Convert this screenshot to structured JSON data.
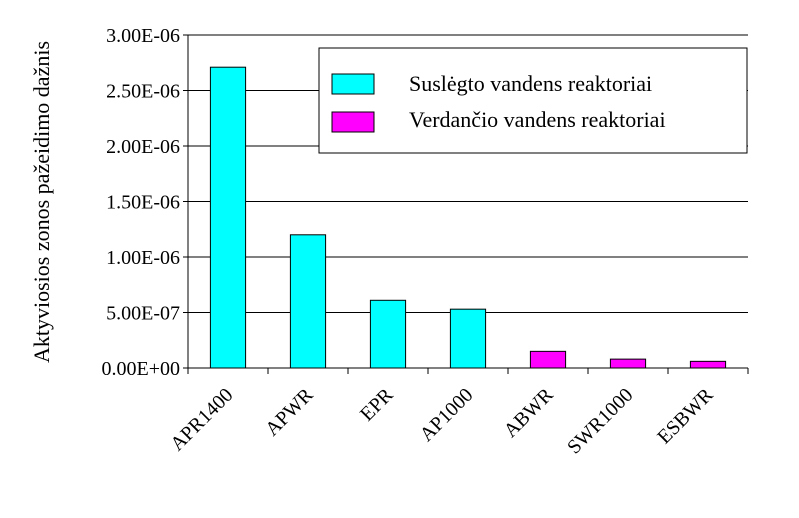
{
  "chart_data": {
    "type": "bar",
    "title": "",
    "xlabel": "",
    "ylabel": "Aktyviosios zonos pažeidimo dažnis",
    "ylim": [
      0,
      3e-06
    ],
    "y_ticks": [
      {
        "value": 0,
        "label": "0.00E+00"
      },
      {
        "value": 5e-07,
        "label": "5.00E-07"
      },
      {
        "value": 1e-06,
        "label": "1.00E-06"
      },
      {
        "value": 1.5e-06,
        "label": "1.50E-06"
      },
      {
        "value": 2e-06,
        "label": "2.00E-06"
      },
      {
        "value": 2.5e-06,
        "label": "2.50E-06"
      },
      {
        "value": 3e-06,
        "label": "3.00E-06"
      }
    ],
    "categories": [
      "APR1400",
      "APWR",
      "EPR",
      "AP1000",
      "ABWR",
      "SWR1000",
      "ESBWR"
    ],
    "values": [
      2.71e-06,
      1.2e-06,
      6.1e-07,
      5.3e-07,
      1.5e-07,
      8e-08,
      6e-08
    ],
    "bar_series": [
      0,
      0,
      0,
      0,
      1,
      1,
      1
    ],
    "series": [
      {
        "name": "Suslėgto vandens reaktoriai",
        "color": "#00FFFF"
      },
      {
        "name": "Verdančio vandens reaktoriai",
        "color": "#FF00FF"
      }
    ],
    "grid": true,
    "legend_position": "top-right"
  }
}
